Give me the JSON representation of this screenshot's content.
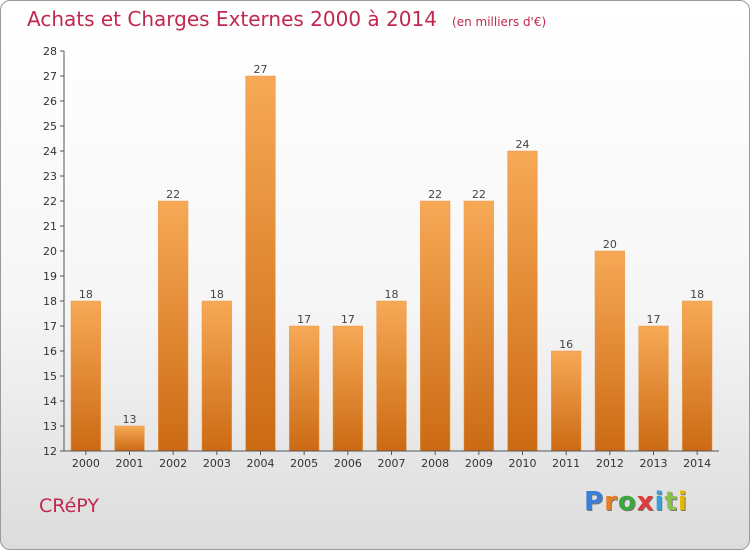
{
  "title": "Achats et Charges Externes 2000 à 2014",
  "unit": "(en milliers d'€)",
  "town": "CRéPY",
  "logo": {
    "letters": [
      "P",
      "r",
      "o",
      "x",
      "i",
      "t",
      "i"
    ],
    "colors": [
      "#3a7fd5",
      "#e67e22",
      "#3aa83a",
      "#e03a3a",
      "#3aa0d8",
      "#8bc34a",
      "#e6b800"
    ]
  },
  "colors": {
    "bar_top": "#f7a956",
    "bar_bottom": "#cc6a14",
    "text": "#c2284e"
  },
  "chart_data": {
    "type": "bar",
    "categories": [
      "2000",
      "2001",
      "2002",
      "2003",
      "2004",
      "2005",
      "2006",
      "2007",
      "2008",
      "2009",
      "2010",
      "2011",
      "2012",
      "2013",
      "2014"
    ],
    "values": [
      18,
      13,
      22,
      18,
      27,
      17,
      17,
      18,
      22,
      22,
      24,
      16,
      20,
      17,
      18
    ],
    "value_labels": [
      "18",
      "13",
      "22",
      "18",
      "27",
      "17",
      "17",
      "18",
      "22",
      "22",
      "24",
      "16",
      "20",
      "17",
      "18"
    ],
    "yticks": [
      "12",
      "13",
      "14",
      "15",
      "16",
      "17",
      "18",
      "19",
      "20",
      "21",
      "22",
      "23",
      "24",
      "25",
      "26",
      "27",
      "28"
    ],
    "ylim": [
      12,
      28
    ],
    "grid": false,
    "legend": "none"
  }
}
